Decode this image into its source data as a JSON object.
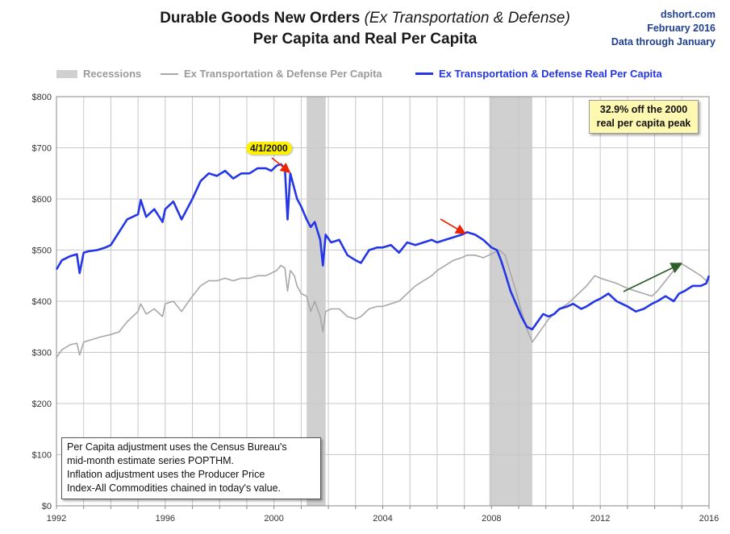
{
  "header": {
    "title_main": "Durable Goods New Orders",
    "title_paren": "(Ex Transportation & Defense)",
    "subtitle": "Per Capita and Real Per Capita"
  },
  "source": {
    "site": "dshort.com",
    "date": "February 2016",
    "through": "Data through January"
  },
  "legend": {
    "recessions": "Recessions",
    "nominal": "Ex Transportation & Defense Per Capita",
    "real": "Ex Transportation & Defense Real Per Capita"
  },
  "annotations": {
    "peak_date": "4/1/2000",
    "callout_line1": "32.9% off the 2000",
    "callout_line2": "real per capita peak",
    "note_lines": [
      "Per Capita adjustment uses the Census Bureau's",
      "mid-month estimate series POPTHM.",
      "Inflation adjustment uses the Producer Price",
      "Index-All Commodities chained in today's value."
    ]
  },
  "colors": {
    "real": "#2436e6",
    "nominal": "#a8a8a8",
    "recession": "#d0d0d0",
    "grid": "#c8c8c8",
    "red_arrow": "#ee2200",
    "green_arrow": "#2e5e2a"
  },
  "chart_data": {
    "type": "line",
    "title": "Durable Goods New Orders (Ex Transportation & Defense) Per Capita and Real Per Capita",
    "xlim": [
      1992,
      2016
    ],
    "ylim": [
      0,
      800
    ],
    "x_ticks": [
      1992,
      1996,
      2000,
      2004,
      2008,
      2012,
      2016
    ],
    "x_tick_labels": [
      "1992",
      "1996",
      "2000",
      "2004",
      "2008",
      "2012",
      "2016"
    ],
    "y_ticks": [
      0,
      100,
      200,
      300,
      400,
      500,
      600,
      700,
      800
    ],
    "y_tick_labels": [
      "$0",
      "$100",
      "$200",
      "$300",
      "$400",
      "$500",
      "$600",
      "$700",
      "$800"
    ],
    "recessions": [
      [
        2001.2,
        2001.9
      ],
      [
        2007.92,
        2009.5
      ]
    ],
    "series": [
      {
        "name": "Ex Transportation & Defense Real Per Capita",
        "x": [
          1992.0,
          1992.2,
          1992.5,
          1992.75,
          1992.85,
          1993.0,
          1993.2,
          1993.5,
          1993.8,
          1994.0,
          1994.3,
          1994.6,
          1995.0,
          1995.1,
          1995.3,
          1995.6,
          1995.9,
          1996.0,
          1996.3,
          1996.6,
          1996.8,
          1997.0,
          1997.3,
          1997.6,
          1997.9,
          1998.2,
          1998.5,
          1998.8,
          1999.1,
          1999.4,
          1999.7,
          1999.9,
          2000.1,
          2000.25,
          2000.4,
          2000.5,
          2000.6,
          2000.75,
          2000.85,
          2001.0,
          2001.2,
          2001.35,
          2001.5,
          2001.7,
          2001.8,
          2001.9,
          2002.1,
          2002.4,
          2002.7,
          2003.0,
          2003.2,
          2003.5,
          2003.8,
          2004.0,
          2004.3,
          2004.6,
          2004.9,
          2005.2,
          2005.5,
          2005.8,
          2006.0,
          2006.3,
          2006.6,
          2006.9,
          2007.1,
          2007.4,
          2007.7,
          2007.9,
          2008.0,
          2008.2,
          2008.35,
          2008.5,
          2008.7,
          2008.9,
          2009.1,
          2009.3,
          2009.5,
          2009.7,
          2009.9,
          2010.1,
          2010.3,
          2010.5,
          2010.8,
          2011.0,
          2011.3,
          2011.5,
          2011.8,
          2012.0,
          2012.3,
          2012.6,
          2012.8,
          2013.0,
          2013.3,
          2013.6,
          2013.9,
          2014.1,
          2014.4,
          2014.7,
          2014.9,
          2015.1,
          2015.4,
          2015.7,
          2015.9,
          2016.0
        ],
        "y": [
          462,
          480,
          488,
          492,
          455,
          495,
          498,
          500,
          505,
          510,
          535,
          560,
          570,
          598,
          565,
          580,
          555,
          580,
          595,
          560,
          580,
          600,
          635,
          650,
          645,
          655,
          640,
          650,
          650,
          660,
          660,
          655,
          665,
          668,
          660,
          560,
          650,
          620,
          600,
          585,
          560,
          545,
          555,
          520,
          470,
          530,
          515,
          520,
          490,
          480,
          475,
          500,
          505,
          505,
          510,
          495,
          515,
          510,
          515,
          520,
          515,
          520,
          525,
          530,
          535,
          530,
          520,
          510,
          505,
          500,
          480,
          455,
          420,
          395,
          370,
          350,
          345,
          360,
          375,
          370,
          375,
          385,
          390,
          395,
          385,
          390,
          400,
          405,
          415,
          400,
          395,
          390,
          380,
          385,
          395,
          400,
          410,
          400,
          415,
          420,
          430,
          430,
          435,
          450
        ]
      },
      {
        "name": "Ex Transportation & Defense Per Capita",
        "x": [
          1992.0,
          1992.2,
          1992.5,
          1992.75,
          1992.85,
          1993.0,
          1993.3,
          1993.6,
          1994.0,
          1994.3,
          1994.6,
          1995.0,
          1995.1,
          1995.3,
          1995.6,
          1995.9,
          1996.0,
          1996.3,
          1996.6,
          1996.8,
          1997.0,
          1997.3,
          1997.6,
          1997.9,
          1998.2,
          1998.5,
          1998.8,
          1999.1,
          1999.4,
          1999.7,
          1999.9,
          2000.1,
          2000.25,
          2000.4,
          2000.5,
          2000.6,
          2000.75,
          2000.85,
          2001.0,
          2001.2,
          2001.35,
          2001.5,
          2001.7,
          2001.8,
          2001.9,
          2002.1,
          2002.4,
          2002.7,
          2003.0,
          2003.2,
          2003.5,
          2003.8,
          2004.0,
          2004.3,
          2004.6,
          2004.9,
          2005.2,
          2005.5,
          2005.8,
          2006.0,
          2006.3,
          2006.6,
          2006.9,
          2007.1,
          2007.4,
          2007.7,
          2007.9,
          2008.1,
          2008.3,
          2008.5,
          2008.7,
          2008.9,
          2009.1,
          2009.3,
          2009.5,
          2009.7,
          2009.9,
          2010.1,
          2010.3,
          2010.5,
          2010.8,
          2011.0,
          2011.3,
          2011.5,
          2011.8,
          2012.0,
          2012.3,
          2012.6,
          2012.8,
          2013.0,
          2013.3,
          2013.6,
          2013.9,
          2014.1,
          2014.4,
          2014.7,
          2014.9,
          2015.1,
          2015.4,
          2015.7,
          2015.9,
          2016.0
        ],
        "y": [
          290,
          305,
          315,
          318,
          295,
          320,
          325,
          330,
          335,
          340,
          360,
          380,
          395,
          375,
          385,
          370,
          395,
          400,
          380,
          395,
          410,
          430,
          440,
          440,
          445,
          440,
          445,
          445,
          450,
          450,
          455,
          460,
          470,
          465,
          420,
          460,
          450,
          430,
          415,
          410,
          380,
          400,
          370,
          340,
          380,
          385,
          385,
          370,
          365,
          370,
          385,
          390,
          390,
          395,
          400,
          415,
          430,
          440,
          450,
          460,
          470,
          480,
          485,
          490,
          490,
          485,
          490,
          495,
          500,
          490,
          455,
          420,
          380,
          345,
          320,
          335,
          350,
          365,
          375,
          385,
          395,
          405,
          420,
          430,
          450,
          445,
          440,
          435,
          430,
          425,
          420,
          415,
          410,
          420,
          440,
          460,
          475,
          470,
          460,
          450,
          440,
          440
        ]
      }
    ],
    "legend_position": "top"
  }
}
